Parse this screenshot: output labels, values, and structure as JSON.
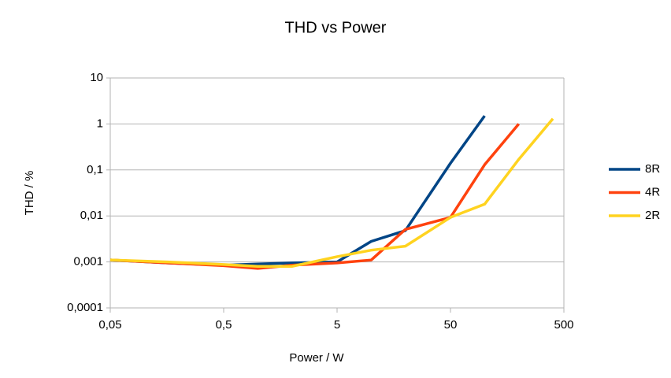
{
  "chart_data": {
    "type": "line",
    "title": "THD vs Power",
    "x_label": "Power / W",
    "y_label": "THD / %",
    "x_scale": "log",
    "y_scale": "log",
    "grid": true,
    "legend": "right",
    "x": [
      0.05,
      0.16,
      0.5,
      1,
      2,
      5,
      10,
      20,
      50,
      100,
      200,
      400
    ],
    "series": [
      {
        "name": "8R",
        "color": "#004586",
        "values": [
          0.0011,
          0.00095,
          0.00085,
          0.0009,
          0.00095,
          0.001,
          0.0028,
          0.0048,
          0.14,
          1.5,
          null,
          null
        ]
      },
      {
        "name": "4R",
        "color": "#ff420e",
        "values": [
          0.0011,
          0.00095,
          0.00083,
          0.00072,
          0.00085,
          0.00095,
          0.0011,
          0.0051,
          0.0093,
          0.13,
          1.0,
          null
        ]
      },
      {
        "name": "2R",
        "color": "#ffd320",
        "values": [
          0.0011,
          0.001,
          0.00088,
          0.0008,
          0.0008,
          0.0013,
          0.0018,
          0.0022,
          0.0093,
          0.018,
          0.17,
          1.3
        ]
      }
    ],
    "xlim": [
      0.05,
      500
    ],
    "xticks": [
      {
        "value": 0.05,
        "label": "0,05"
      },
      {
        "value": 0.5,
        "label": "0,5"
      },
      5,
      50,
      500
    ],
    "ylim": [
      0.0001,
      10
    ],
    "yticks": [
      {
        "value": 0.0001,
        "label": "0,0001"
      },
      {
        "value": 0.001,
        "label": "0,001"
      },
      {
        "value": 0.01,
        "label": "0,01"
      },
      {
        "value": 0.1,
        "label": "0,1"
      },
      1,
      10
    ]
  }
}
